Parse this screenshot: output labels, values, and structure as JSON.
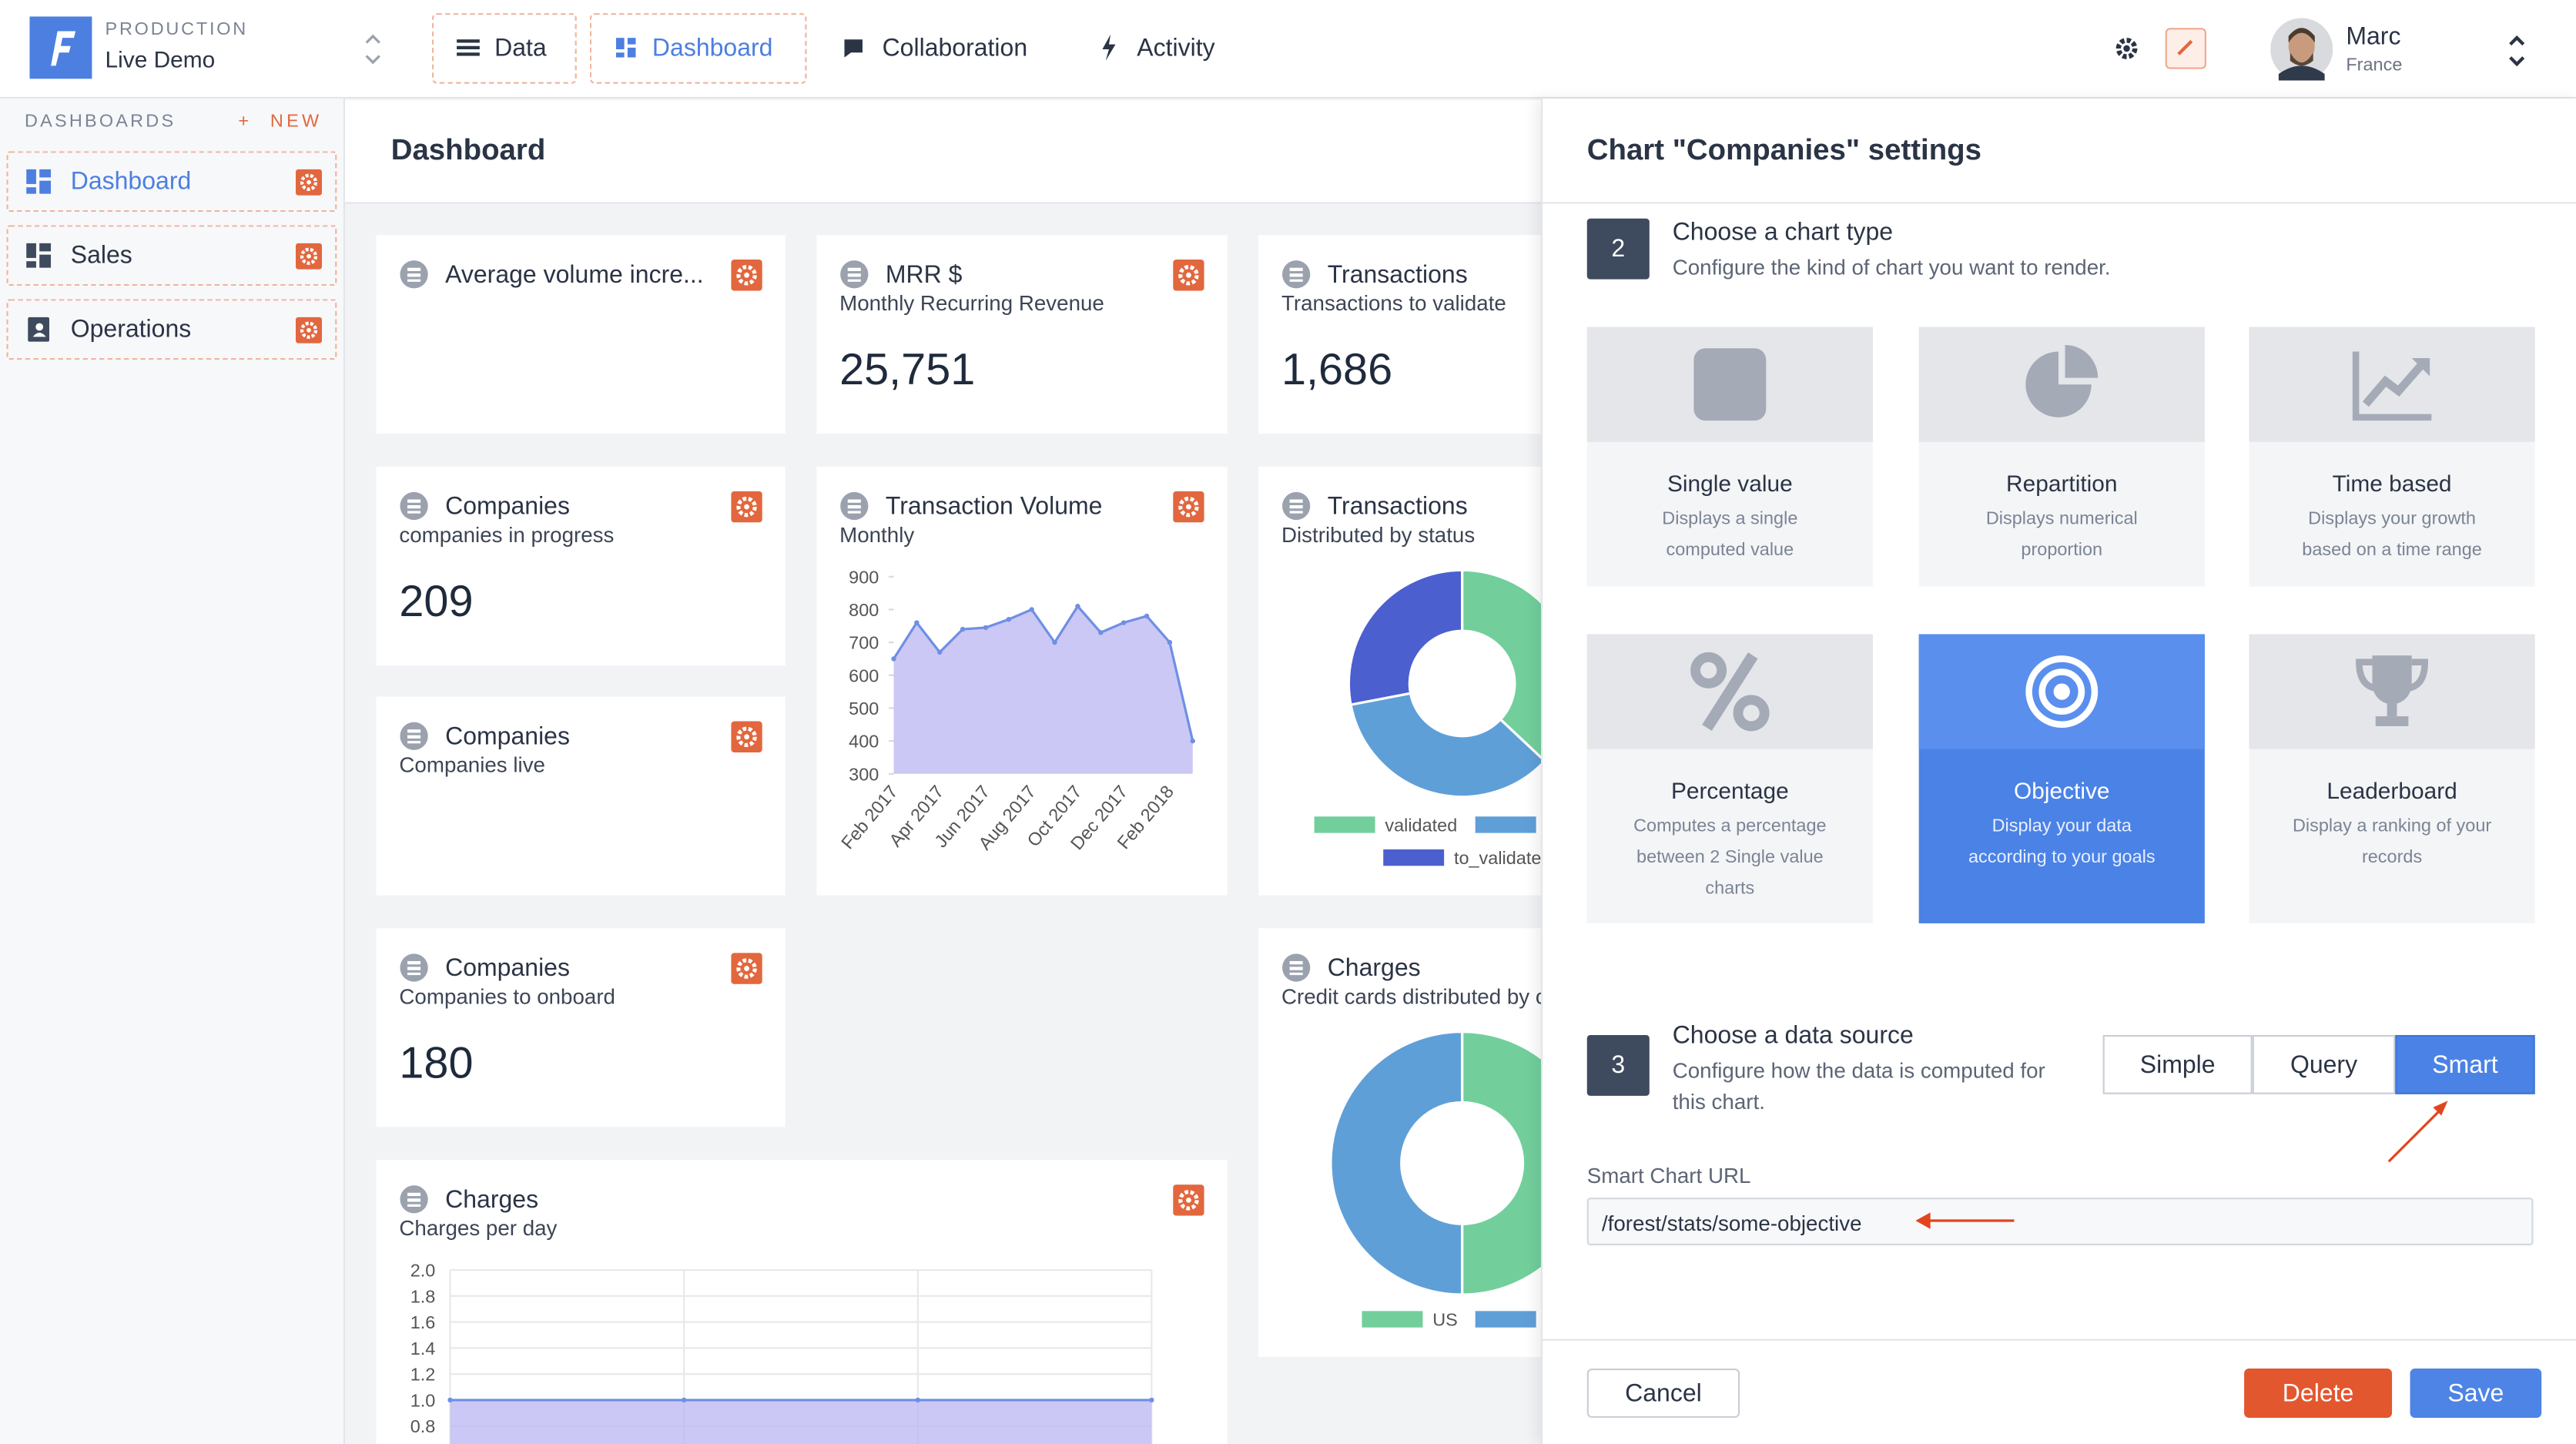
{
  "topbar": {
    "environment": "PRODUCTION",
    "project": "Live Demo",
    "tabs": [
      "Data",
      "Dashboard",
      "Collaboration",
      "Activity"
    ],
    "user_name": "Marc",
    "user_country": "France"
  },
  "sidebar": {
    "heading": "DASHBOARDS",
    "new_button": "+ NEW",
    "items": [
      "Dashboard",
      "Sales",
      "Operations"
    ]
  },
  "dashboard": {
    "title": "Dashboard",
    "cards": [
      {
        "title": "Average volume incre..."
      },
      {
        "title": "MRR $",
        "subtitle": "Monthly Recurring Revenue",
        "value": "25,751"
      },
      {
        "title": "Transactions",
        "subtitle": "Transactions to validate",
        "value": "1,686"
      },
      {
        "title": "Companies",
        "subtitle": "companies in progress",
        "value": "209"
      },
      {
        "title": "Transaction Volume",
        "subtitle": "Monthly",
        "chart": {
          "type": "area",
          "categories": [
            "Feb 2017",
            null,
            "Apr 2017",
            null,
            "Jun 2017",
            null,
            "Aug 2017",
            null,
            "Oct 2017",
            null,
            "Dec 2017",
            null,
            "Feb 2018",
            null
          ],
          "values": [
            650,
            760,
            670,
            740,
            745,
            770,
            800,
            700,
            810,
            730,
            760,
            780,
            700,
            400
          ],
          "color": "#6f8fe4",
          "ylim": [
            300,
            900
          ],
          "yticks": [
            300,
            400,
            500,
            600,
            700,
            800,
            900
          ]
        }
      },
      {
        "title": "Transactions",
        "subtitle": "Distributed by status",
        "chart": {
          "type": "donut",
          "categories": [
            "validated",
            null,
            "to_validate"
          ],
          "values": [
            37,
            35,
            28
          ],
          "colors": [
            "#72cf9c",
            "#5f9fd8",
            "#4c5fcf"
          ]
        }
      },
      {
        "title": "Companies",
        "subtitle": "Companies live"
      },
      {
        "title": "Companies",
        "subtitle": "Companies to onboard",
        "value": "180"
      },
      {
        "title": "Charges",
        "subtitle": "Credit cards distributed by c",
        "chart": {
          "type": "donut",
          "categories": [
            "US",
            null
          ],
          "values": [
            50,
            50
          ],
          "colors": [
            "#72cf9c",
            "#5f9fd8"
          ]
        }
      },
      {
        "title": "Charges",
        "subtitle": "Charges per day",
        "chart": {
          "type": "area",
          "categories": [
            null,
            null,
            null,
            null
          ],
          "values": [
            1,
            1,
            1,
            1
          ],
          "color": "#6f8fe4",
          "ylim": [
            0.8,
            2
          ],
          "yticks": [
            {
              "value": 0.8,
              "label": "0.8"
            },
            {
              "value": 1,
              "label": "1.0"
            },
            1.2,
            1.4,
            1.6,
            1.8,
            {
              "value": 2,
              "label": "2.0"
            }
          ],
          "grid": true
        }
      }
    ]
  },
  "settings": {
    "title": "Chart \"Companies\" settings",
    "steps": [
      {
        "number": "2",
        "title": "Choose a chart type",
        "description": "Configure the kind of chart you want to render."
      },
      {
        "number": "3",
        "title": "Choose a data source",
        "description": "Configure how the data is computed for this chart."
      }
    ],
    "chart_types": [
      {
        "name": "Single value",
        "description": "Displays a single computed value"
      },
      {
        "name": "Repartition",
        "description": "Displays numerical proportion"
      },
      {
        "name": "Time based",
        "description": "Displays your growth based on a time range"
      },
      {
        "name": "Percentage",
        "description": "Computes a percentage between 2 Single value charts"
      },
      {
        "name": "Objective",
        "description": "Display your data according to your goals",
        "selected": true
      },
      {
        "name": "Leaderboard",
        "description": "Display a ranking of your records"
      }
    ],
    "data_sources": [
      {
        "label": "Simple"
      },
      {
        "label": "Query"
      },
      {
        "label": "Smart",
        "selected": true
      }
    ],
    "url_label": "Smart Chart URL",
    "url_value": "/forest/stats/some-objective",
    "buttons": {
      "cancel": "Cancel",
      "delete": "Delete",
      "save": "Save"
    }
  }
}
